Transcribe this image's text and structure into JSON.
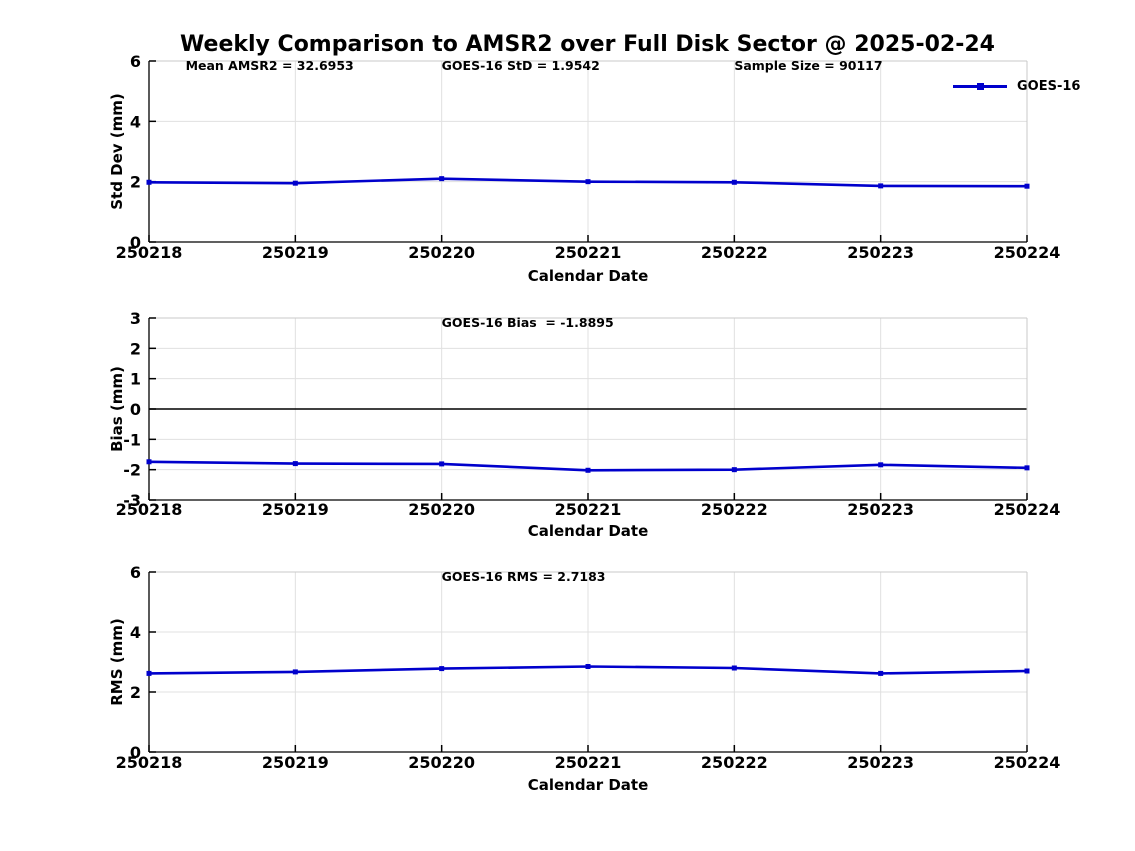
{
  "title": "Weekly Comparison to AMSR2 over Full Disk Sector @ 2025-02-24",
  "legend": {
    "label": "GOES-16"
  },
  "colors": {
    "line": "#0000cc",
    "grid": "#e0e0e0",
    "box": "#c9c9c9",
    "axis": "#000000",
    "zero_line": "#000000"
  },
  "chart_data": [
    {
      "type": "line",
      "panel": "std-dev",
      "categories": [
        "250218",
        "250219",
        "250220",
        "250221",
        "250222",
        "250223",
        "250224"
      ],
      "series": [
        {
          "name": "GOES-16",
          "values": [
            1.98,
            1.95,
            2.1,
            2.0,
            1.98,
            1.86,
            1.85
          ]
        }
      ],
      "xlabel": "Calendar Date",
      "ylabel": "Std Dev (mm)",
      "ylim": [
        0,
        6
      ],
      "yticks": [
        0,
        2,
        4,
        6
      ],
      "grid": true,
      "zero_line": false,
      "legend_position": "top-right",
      "annotations": [
        {
          "text": "Mean AMSR2 = 32.6953",
          "xi": 0.25
        },
        {
          "text": "GOES-16 StD = 1.9542",
          "xi": 2.0
        },
        {
          "text": "Sample Size = 90117",
          "xi": 4.0
        }
      ]
    },
    {
      "type": "line",
      "panel": "bias",
      "categories": [
        "250218",
        "250219",
        "250220",
        "250221",
        "250222",
        "250223",
        "250224"
      ],
      "series": [
        {
          "name": "GOES-16",
          "values": [
            -1.74,
            -1.8,
            -1.81,
            -2.02,
            -2.0,
            -1.84,
            -1.94
          ]
        }
      ],
      "xlabel": "Calendar Date",
      "ylabel": "Bias (mm)",
      "ylim": [
        -3,
        3
      ],
      "yticks": [
        3,
        2,
        1,
        0,
        -1,
        -2,
        -3
      ],
      "grid": true,
      "zero_line": true,
      "annotations": [
        {
          "text": "GOES-16 Bias  = -1.8895",
          "xi": 2.0
        }
      ]
    },
    {
      "type": "line",
      "panel": "rms",
      "categories": [
        "250218",
        "250219",
        "250220",
        "250221",
        "250222",
        "250223",
        "250224"
      ],
      "series": [
        {
          "name": "GOES-16",
          "values": [
            2.62,
            2.67,
            2.78,
            2.85,
            2.8,
            2.62,
            2.7
          ]
        }
      ],
      "xlabel": "Calendar Date",
      "ylabel": "RMS (mm)",
      "ylim": [
        0,
        6
      ],
      "yticks": [
        0,
        2,
        4,
        6
      ],
      "grid": true,
      "zero_line": false,
      "annotations": [
        {
          "text": "GOES-16 RMS = 2.7183",
          "xi": 2.0
        }
      ]
    }
  ]
}
